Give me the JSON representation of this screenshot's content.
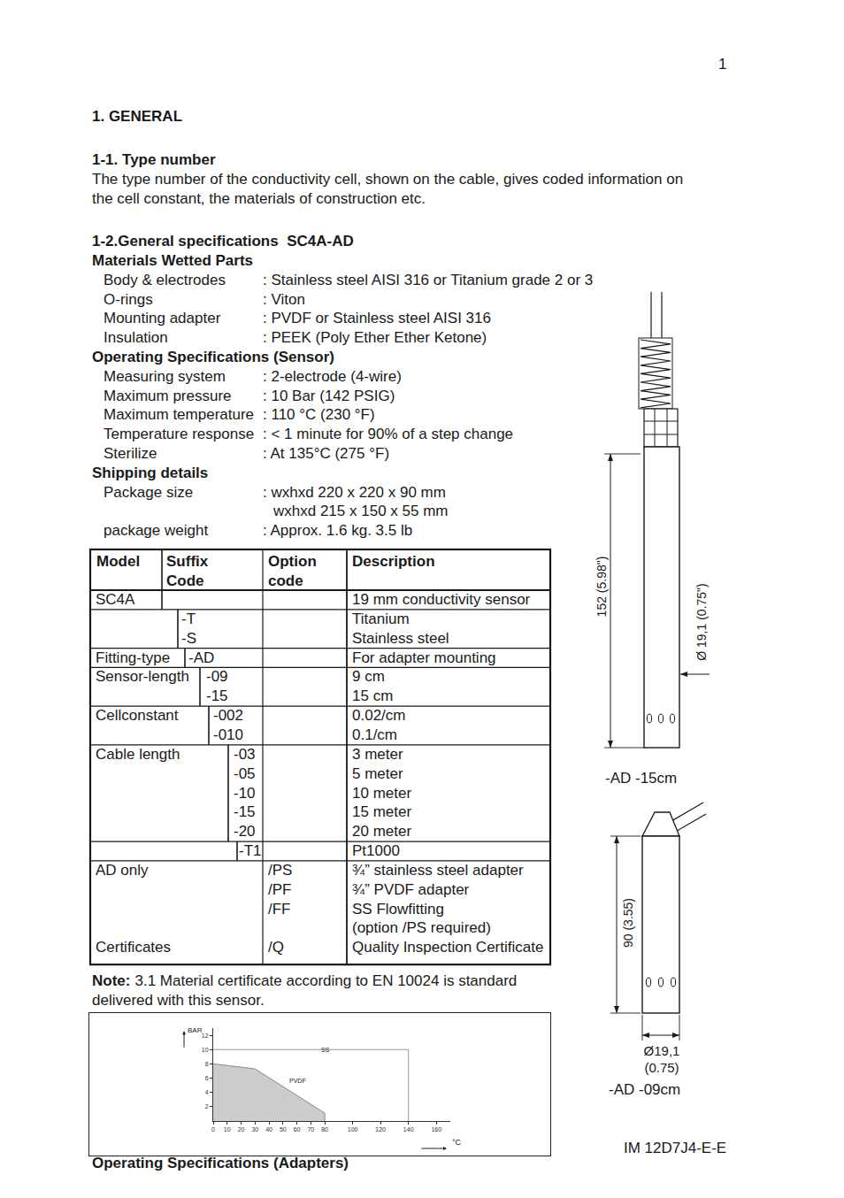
{
  "page_number": "1",
  "heading": "1. GENERAL",
  "type_number": {
    "title": "1-1. Type number",
    "lines": [
      "The type number of the conductivity cell, shown on the cable, gives coded information on",
      "the cell constant, the materials of construction etc."
    ]
  },
  "specs": {
    "title": "1-2.General specifications  SC4A-AD",
    "groups": [
      {
        "title": "Materials Wetted Parts",
        "items": [
          {
            "label": "Body & electrodes",
            "value": ": Stainless steel AISI 316 or Titanium grade 2 or 3"
          },
          {
            "label": "O-rings",
            "value": ": Viton"
          },
          {
            "label": "Mounting adapter",
            "value": ": PVDF or Stainless steel AISI 316"
          },
          {
            "label": "Insulation",
            "value": ": PEEK (Poly Ether Ether Ketone)"
          }
        ]
      },
      {
        "title": "Operating Specifications (Sensor)",
        "items": [
          {
            "label": "Measuring system",
            "value": ": 2-electrode (4-wire)"
          },
          {
            "label": "Maximum pressure",
            "value": ": 10 Bar (142 PSIG)"
          },
          {
            "label": "Maximum temperature",
            "value": ": 110 °C (230 °F)"
          },
          {
            "label": "Temperature response",
            "value": ": < 1 minute for 90% of a step change"
          },
          {
            "label": "Sterilize",
            "value": ": At 135°C (275 °F)"
          }
        ]
      },
      {
        "title": "Shipping details",
        "items": [
          {
            "label": "Package size",
            "value": ": wxhxd 220 x 220 x 90 mm"
          },
          {
            "value": "wxhxd 215 x 150 x 55 mm"
          },
          {
            "label": "package weight",
            "value": ": Approx. 1.6 kg. 3.5 lb"
          }
        ]
      }
    ]
  },
  "table": {
    "header": [
      [
        "Model"
      ],
      [
        "Suffix",
        "Code"
      ],
      [
        "Option",
        "code"
      ],
      [
        "Description"
      ]
    ],
    "groups": [
      {
        "rows": [
          {
            "label": "SC4A",
            "description": "19 mm conductivity sensor"
          }
        ]
      },
      {
        "rows": [
          {
            "code": "-T",
            "description": "Titanium"
          },
          {
            "code": "-S",
            "description": "Stainless steel"
          }
        ]
      },
      {
        "rows": [
          {
            "label": "Fitting-type",
            "code": "-AD",
            "description": "For adapter mounting"
          }
        ]
      },
      {
        "rows": [
          {
            "label": "Sensor-length",
            "code": "-09",
            "description": "9 cm"
          },
          {
            "code": "-15",
            "description": "15 cm"
          }
        ]
      },
      {
        "rows": [
          {
            "label": "Cellconstant",
            "code": "-002",
            "description": "0.02/cm"
          },
          {
            "code": "-010",
            "description": "0.1/cm"
          }
        ]
      },
      {
        "rows": [
          {
            "label": "Cable length",
            "code": "-03",
            "description": "3 meter"
          },
          {
            "code": "-05",
            "description": "5 meter"
          },
          {
            "code": "-10",
            "description": "10 meter"
          },
          {
            "code": "-15",
            "description": "15 meter"
          },
          {
            "code": "-20",
            "description": "20 meter"
          }
        ]
      },
      {
        "rows": [
          {
            "code": "-T1",
            "description": "Pt1000"
          }
        ]
      },
      {
        "rows": [
          {
            "label": "AD only",
            "option": "/PS",
            "description": "¾” stainless steel adapter"
          },
          {
            "option": "/PF",
            "description": "¾” PVDF adapter"
          },
          {
            "option": "/FF",
            "description": "SS Flowfitting"
          },
          {
            "description": "(option /PS required)"
          },
          {
            "label": "Certificates",
            "option": "/Q",
            "description": "Quality Inspection Certificate"
          }
        ]
      }
    ]
  },
  "note": {
    "label": "Note:",
    "lines": [
      "3.1 Material certificate according to EN 10024 is standard",
      "delivered with this sensor."
    ]
  },
  "chart_data": {
    "type": "line",
    "xlabel": "°C",
    "ylabel": "BAR",
    "series": [
      {
        "name": "SS",
        "type": "line",
        "color": "#9a9a9a",
        "x": [
          0,
          140,
          140
        ],
        "values": [
          10,
          10,
          0
        ]
      },
      {
        "name": "PVDF",
        "type": "area",
        "color": "#cccccc",
        "x": [
          0,
          30,
          80,
          80
        ],
        "values": [
          8,
          7.3,
          1.1,
          0
        ]
      }
    ],
    "xlim": [
      0,
      170
    ],
    "ylim": [
      0,
      13
    ],
    "xticks": [
      0,
      10,
      20,
      30,
      40,
      50,
      60,
      70,
      80,
      100,
      120,
      140,
      160
    ],
    "yticks": [
      2,
      4,
      6,
      8,
      10,
      12
    ],
    "grid": false
  },
  "footer_heading": "Operating Specifications (Adapters)",
  "doc_id": "IM 12D7J4-E-E",
  "figures": [
    {
      "caption": "-AD -15cm",
      "length_label": "152 (5.98\")",
      "diameter_label": [
        "Ø 19,1 (0.75\")"
      ]
    },
    {
      "caption": "-AD -09cm",
      "length_label": "90 (3.55)",
      "diameter_label": [
        "Ø19,1",
        "(0.75)"
      ]
    }
  ]
}
